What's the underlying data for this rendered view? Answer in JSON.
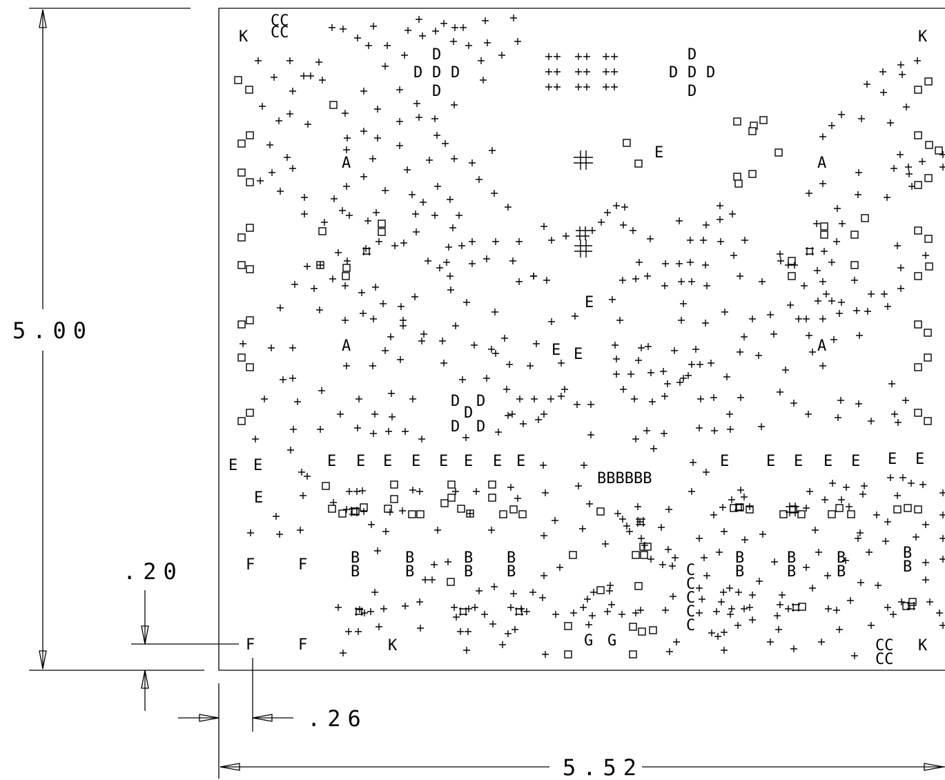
{
  "dimensions": {
    "height": "5.00",
    "width": "5.52",
    "offset_y": ".20",
    "offset_x": ".26"
  },
  "markers": {
    "corner_k": "K",
    "fiducial_a": "A",
    "pad_b": "B",
    "pad_c": "C",
    "pad_d": "D",
    "pad_e": "E",
    "pad_f": "F",
    "pad_g": "G",
    "cc": "CC",
    "bbbbbb": "BBBBBB"
  }
}
